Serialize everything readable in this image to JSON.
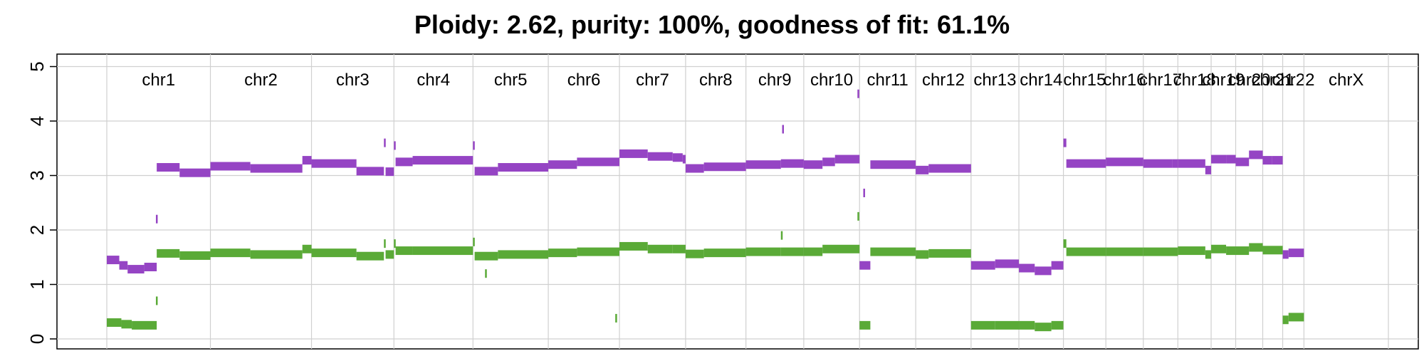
{
  "chart_data": {
    "type": "scatter",
    "title": "Ploidy: 2.62, purity: 100%, goodness of fit: 61.1%",
    "xlabel": "",
    "ylabel": "",
    "ylim": [
      0,
      5
    ],
    "yticks": [
      0,
      1,
      2,
      3,
      4,
      5
    ],
    "grid": true,
    "colors": {
      "major": "#9544c4",
      "minor": "#5aaa37",
      "grid": "#d0d0d0"
    },
    "genome_length": 3080,
    "chromosomes": [
      {
        "name": "chr1",
        "start": 0,
        "end": 249
      },
      {
        "name": "chr2",
        "start": 249,
        "end": 492
      },
      {
        "name": "chr3",
        "start": 492,
        "end": 690
      },
      {
        "name": "chr4",
        "start": 690,
        "end": 880
      },
      {
        "name": "chr5",
        "start": 880,
        "end": 1061
      },
      {
        "name": "chr6",
        "start": 1061,
        "end": 1232
      },
      {
        "name": "chr7",
        "start": 1232,
        "end": 1391
      },
      {
        "name": "chr8",
        "start": 1391,
        "end": 1536
      },
      {
        "name": "chr9",
        "start": 1536,
        "end": 1675
      },
      {
        "name": "chr10",
        "start": 1675,
        "end": 1809
      },
      {
        "name": "chr11",
        "start": 1809,
        "end": 1944
      },
      {
        "name": "chr12",
        "start": 1944,
        "end": 2077
      },
      {
        "name": "chr13",
        "start": 2077,
        "end": 2192
      },
      {
        "name": "chr14",
        "start": 2192,
        "end": 2299
      },
      {
        "name": "chr15",
        "start": 2299,
        "end": 2401
      },
      {
        "name": "chr16",
        "start": 2401,
        "end": 2491
      },
      {
        "name": "chr17",
        "start": 2491,
        "end": 2574
      },
      {
        "name": "chr18",
        "start": 2574,
        "end": 2654
      },
      {
        "name": "chr19",
        "start": 2654,
        "end": 2713
      },
      {
        "name": "chr20",
        "start": 2713,
        "end": 2778
      },
      {
        "name": "chr21",
        "start": 2778,
        "end": 2826
      },
      {
        "name": "chr22",
        "start": 2826,
        "end": 2877
      },
      {
        "name": "chrX",
        "start": 2877,
        "end": 3080
      }
    ],
    "series": [
      {
        "key": "major",
        "segments": [
          [
            0,
            30,
            1.45
          ],
          [
            30,
            50,
            1.35
          ],
          [
            50,
            90,
            1.28
          ],
          [
            90,
            120,
            1.32
          ],
          [
            118,
            119,
            2.2
          ],
          [
            120,
            175,
            3.15
          ],
          [
            175,
            249,
            3.05
          ],
          [
            249,
            345,
            3.17
          ],
          [
            345,
            470,
            3.13
          ],
          [
            470,
            492,
            3.28
          ],
          [
            492,
            600,
            3.22
          ],
          [
            600,
            666,
            3.08
          ],
          [
            666,
            670,
            3.6
          ],
          [
            670,
            690,
            3.07
          ],
          [
            690,
            694,
            3.55
          ],
          [
            694,
            735,
            3.25
          ],
          [
            735,
            880,
            3.28
          ],
          [
            880,
            884,
            3.55
          ],
          [
            884,
            940,
            3.08
          ],
          [
            940,
            1061,
            3.15
          ],
          [
            1061,
            1130,
            3.2
          ],
          [
            1130,
            1232,
            3.25
          ],
          [
            1232,
            1300,
            3.4
          ],
          [
            1300,
            1360,
            3.35
          ],
          [
            1360,
            1384,
            3.33
          ],
          [
            1384,
            1391,
            3.3
          ],
          [
            1391,
            1435,
            3.13
          ],
          [
            1435,
            1536,
            3.16
          ],
          [
            1536,
            1620,
            3.2
          ],
          [
            1620,
            1675,
            3.22
          ],
          [
            1675,
            1720,
            3.2
          ],
          [
            1720,
            1750,
            3.25
          ],
          [
            1750,
            1809,
            3.3
          ],
          [
            1809,
            1835,
            1.35
          ],
          [
            1835,
            1944,
            3.2
          ],
          [
            1944,
            1975,
            3.1
          ],
          [
            1975,
            2077,
            3.13
          ],
          [
            2077,
            2135,
            1.35
          ],
          [
            2135,
            2192,
            1.38
          ],
          [
            2192,
            2230,
            1.3
          ],
          [
            2230,
            2270,
            1.25
          ],
          [
            2270,
            2299,
            1.35
          ],
          [
            2299,
            2306,
            3.6
          ],
          [
            2306,
            2401,
            3.22
          ],
          [
            2401,
            2491,
            3.25
          ],
          [
            2491,
            2560,
            3.22
          ],
          [
            2560,
            2574,
            3.22
          ],
          [
            2574,
            2640,
            3.22
          ],
          [
            2640,
            2654,
            3.1
          ],
          [
            2654,
            2690,
            3.3
          ],
          [
            2690,
            2713,
            3.3
          ],
          [
            2713,
            2745,
            3.25
          ],
          [
            2745,
            2778,
            3.38
          ],
          [
            2778,
            2800,
            3.28
          ],
          [
            2800,
            2826,
            3.28
          ],
          [
            2826,
            2840,
            1.55
          ],
          [
            2840,
            2877,
            1.58
          ],
          [
            1804,
            1807,
            4.5
          ],
          [
            1818,
            1820,
            2.68
          ],
          [
            1623,
            1625,
            3.85
          ]
        ]
      },
      {
        "key": "minor",
        "segments": [
          [
            0,
            35,
            0.3
          ],
          [
            35,
            60,
            0.27
          ],
          [
            60,
            120,
            0.25
          ],
          [
            118,
            119,
            0.7
          ],
          [
            120,
            175,
            1.57
          ],
          [
            175,
            249,
            1.53
          ],
          [
            249,
            345,
            1.58
          ],
          [
            345,
            470,
            1.55
          ],
          [
            470,
            492,
            1.65
          ],
          [
            492,
            600,
            1.58
          ],
          [
            600,
            666,
            1.52
          ],
          [
            666,
            670,
            1.75
          ],
          [
            670,
            690,
            1.55
          ],
          [
            690,
            694,
            1.75
          ],
          [
            694,
            735,
            1.62
          ],
          [
            735,
            880,
            1.62
          ],
          [
            880,
            884,
            1.78
          ],
          [
            884,
            940,
            1.52
          ],
          [
            940,
            1061,
            1.55
          ],
          [
            1061,
            1130,
            1.58
          ],
          [
            1130,
            1232,
            1.6
          ],
          [
            1222,
            1225,
            0.38
          ],
          [
            1232,
            1300,
            1.7
          ],
          [
            1300,
            1360,
            1.65
          ],
          [
            1360,
            1391,
            1.65
          ],
          [
            1391,
            1435,
            1.56
          ],
          [
            1435,
            1536,
            1.58
          ],
          [
            1536,
            1620,
            1.6
          ],
          [
            1620,
            1675,
            1.6
          ],
          [
            1675,
            1720,
            1.6
          ],
          [
            1720,
            1809,
            1.65
          ],
          [
            1809,
            1835,
            0.25
          ],
          [
            1835,
            1944,
            1.6
          ],
          [
            1944,
            1975,
            1.55
          ],
          [
            1975,
            2077,
            1.57
          ],
          [
            2077,
            2135,
            0.25
          ],
          [
            2135,
            2192,
            0.25
          ],
          [
            2192,
            2230,
            0.25
          ],
          [
            2230,
            2270,
            0.22
          ],
          [
            2270,
            2299,
            0.25
          ],
          [
            2299,
            2306,
            1.75
          ],
          [
            2306,
            2401,
            1.6
          ],
          [
            2401,
            2491,
            1.6
          ],
          [
            2491,
            2574,
            1.6
          ],
          [
            2574,
            2640,
            1.62
          ],
          [
            2640,
            2654,
            1.55
          ],
          [
            2654,
            2690,
            1.65
          ],
          [
            2690,
            2713,
            1.62
          ],
          [
            2713,
            2745,
            1.62
          ],
          [
            2745,
            2778,
            1.68
          ],
          [
            2778,
            2826,
            1.63
          ],
          [
            2826,
            2840,
            0.35
          ],
          [
            2840,
            2877,
            0.4
          ],
          [
            1804,
            1807,
            2.25
          ],
          [
            1620,
            1623,
            1.9
          ],
          [
            909,
            911,
            1.2
          ]
        ]
      }
    ]
  }
}
